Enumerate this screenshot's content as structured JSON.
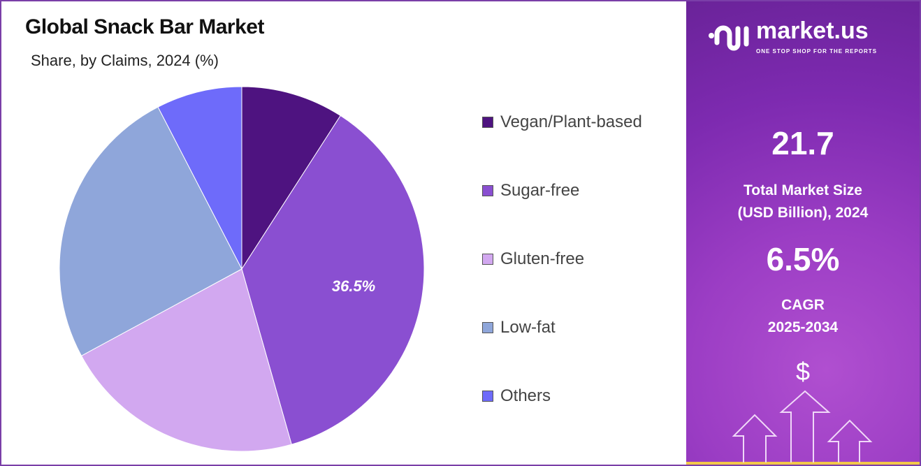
{
  "chart_data": {
    "type": "pie",
    "title": "Global Snack Bar Market",
    "subtitle": "Share, by Claims, 2024 (%)",
    "start_angle": "top",
    "direction": "clockwise",
    "legend_position": "right",
    "slices": [
      {
        "label": "Vegan/Plant-based",
        "value": 9.1,
        "color": "#4e1380"
      },
      {
        "label": "Sugar-free",
        "value": 36.5,
        "color": "#8a4fd1",
        "data_label": "36.5%"
      },
      {
        "label": "Gluten-free",
        "value": 21.5,
        "color": "#d2a8f0"
      },
      {
        "label": "Low-fat",
        "value": 25.3,
        "color": "#8fa6da"
      },
      {
        "label": "Others",
        "value": 7.6,
        "color": "#6e6bfa"
      }
    ]
  },
  "side": {
    "brand": "market.us",
    "tagline": "ONE STOP SHOP FOR THE REPORTS",
    "market_size": "21.7",
    "market_size_label_1": "Total Market Size",
    "market_size_label_2": "(USD Billion), 2024",
    "cagr": "6.5%",
    "cagr_label_1": "CAGR",
    "cagr_label_2": "2025-2034",
    "dollar": "$"
  }
}
